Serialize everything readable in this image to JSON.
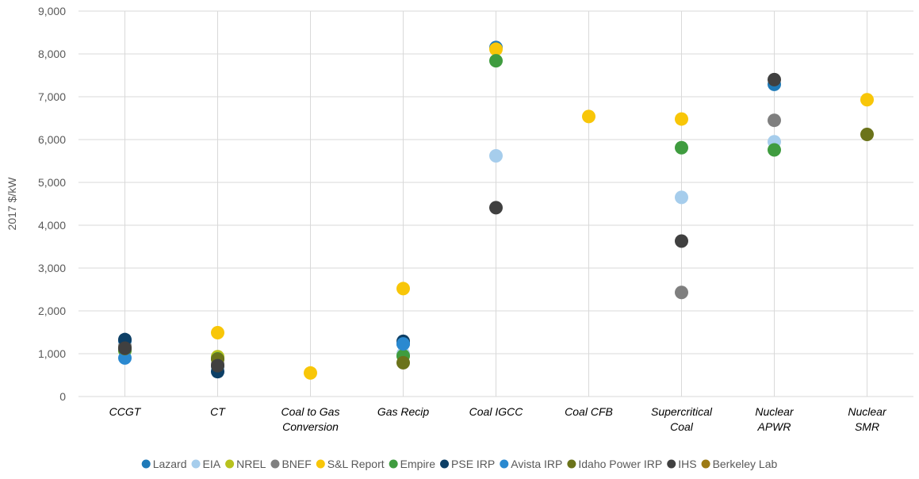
{
  "chart_data": {
    "type": "scatter",
    "ylabel": "2017 $/kW",
    "xlabel": "",
    "ylim": [
      0,
      9000
    ],
    "ytick_step": 1000,
    "grid": true,
    "legend_position": "bottom",
    "categories": [
      [
        "CCGT"
      ],
      [
        "CT"
      ],
      [
        "Coal to Gas",
        "Conversion"
      ],
      [
        "Gas Recip"
      ],
      [
        "Coal IGCC"
      ],
      [
        "Coal CFB"
      ],
      [
        "Supercritical",
        "Coal"
      ],
      [
        "Nuclear",
        "APWR"
      ],
      [
        "Nuclear",
        "SMR"
      ]
    ],
    "series": [
      {
        "name": "Lazard",
        "color": "#1f7ab8",
        "values": [
          1300,
          700,
          null,
          1230,
          8150,
          null,
          null,
          7290,
          null
        ]
      },
      {
        "name": "EIA",
        "color": "#a6cdec",
        "values": [
          1110,
          660,
          null,
          1000,
          5620,
          null,
          4650,
          5950,
          null
        ]
      },
      {
        "name": "NREL",
        "color": "#b8c21e",
        "values": [
          1070,
          930,
          null,
          950,
          null,
          null,
          null,
          null,
          null
        ]
      },
      {
        "name": "BNEF",
        "color": "#7f7f7f",
        "values": [
          1180,
          760,
          null,
          null,
          null,
          null,
          2430,
          6450,
          null
        ]
      },
      {
        "name": "S&L Report",
        "color": "#f8c608",
        "values": [
          1120,
          1490,
          550,
          2520,
          8110,
          6540,
          6480,
          null,
          6930
        ]
      },
      {
        "name": "Empire",
        "color": "#3f9c3f",
        "values": [
          1080,
          880,
          null,
          950,
          7840,
          null,
          5810,
          5760,
          null
        ]
      },
      {
        "name": "PSE IRP",
        "color": "#0d3f66",
        "values": [
          1330,
          580,
          null,
          1290,
          null,
          null,
          null,
          null,
          null
        ]
      },
      {
        "name": "Avista IRP",
        "color": "#2a89d0",
        "values": [
          900,
          null,
          null,
          1230,
          null,
          null,
          null,
          null,
          null
        ]
      },
      {
        "name": "Idaho Power IRP",
        "color": "#6b731a",
        "values": [
          1120,
          870,
          null,
          790,
          null,
          null,
          null,
          null,
          6120
        ]
      },
      {
        "name": "IHS",
        "color": "#404040",
        "values": [
          1130,
          720,
          null,
          null,
          4410,
          null,
          3630,
          7400,
          null
        ]
      },
      {
        "name": "Berkeley Lab",
        "color": "#9c7a14",
        "values": [
          null,
          null,
          null,
          null,
          null,
          null,
          null,
          null,
          null
        ]
      }
    ]
  }
}
